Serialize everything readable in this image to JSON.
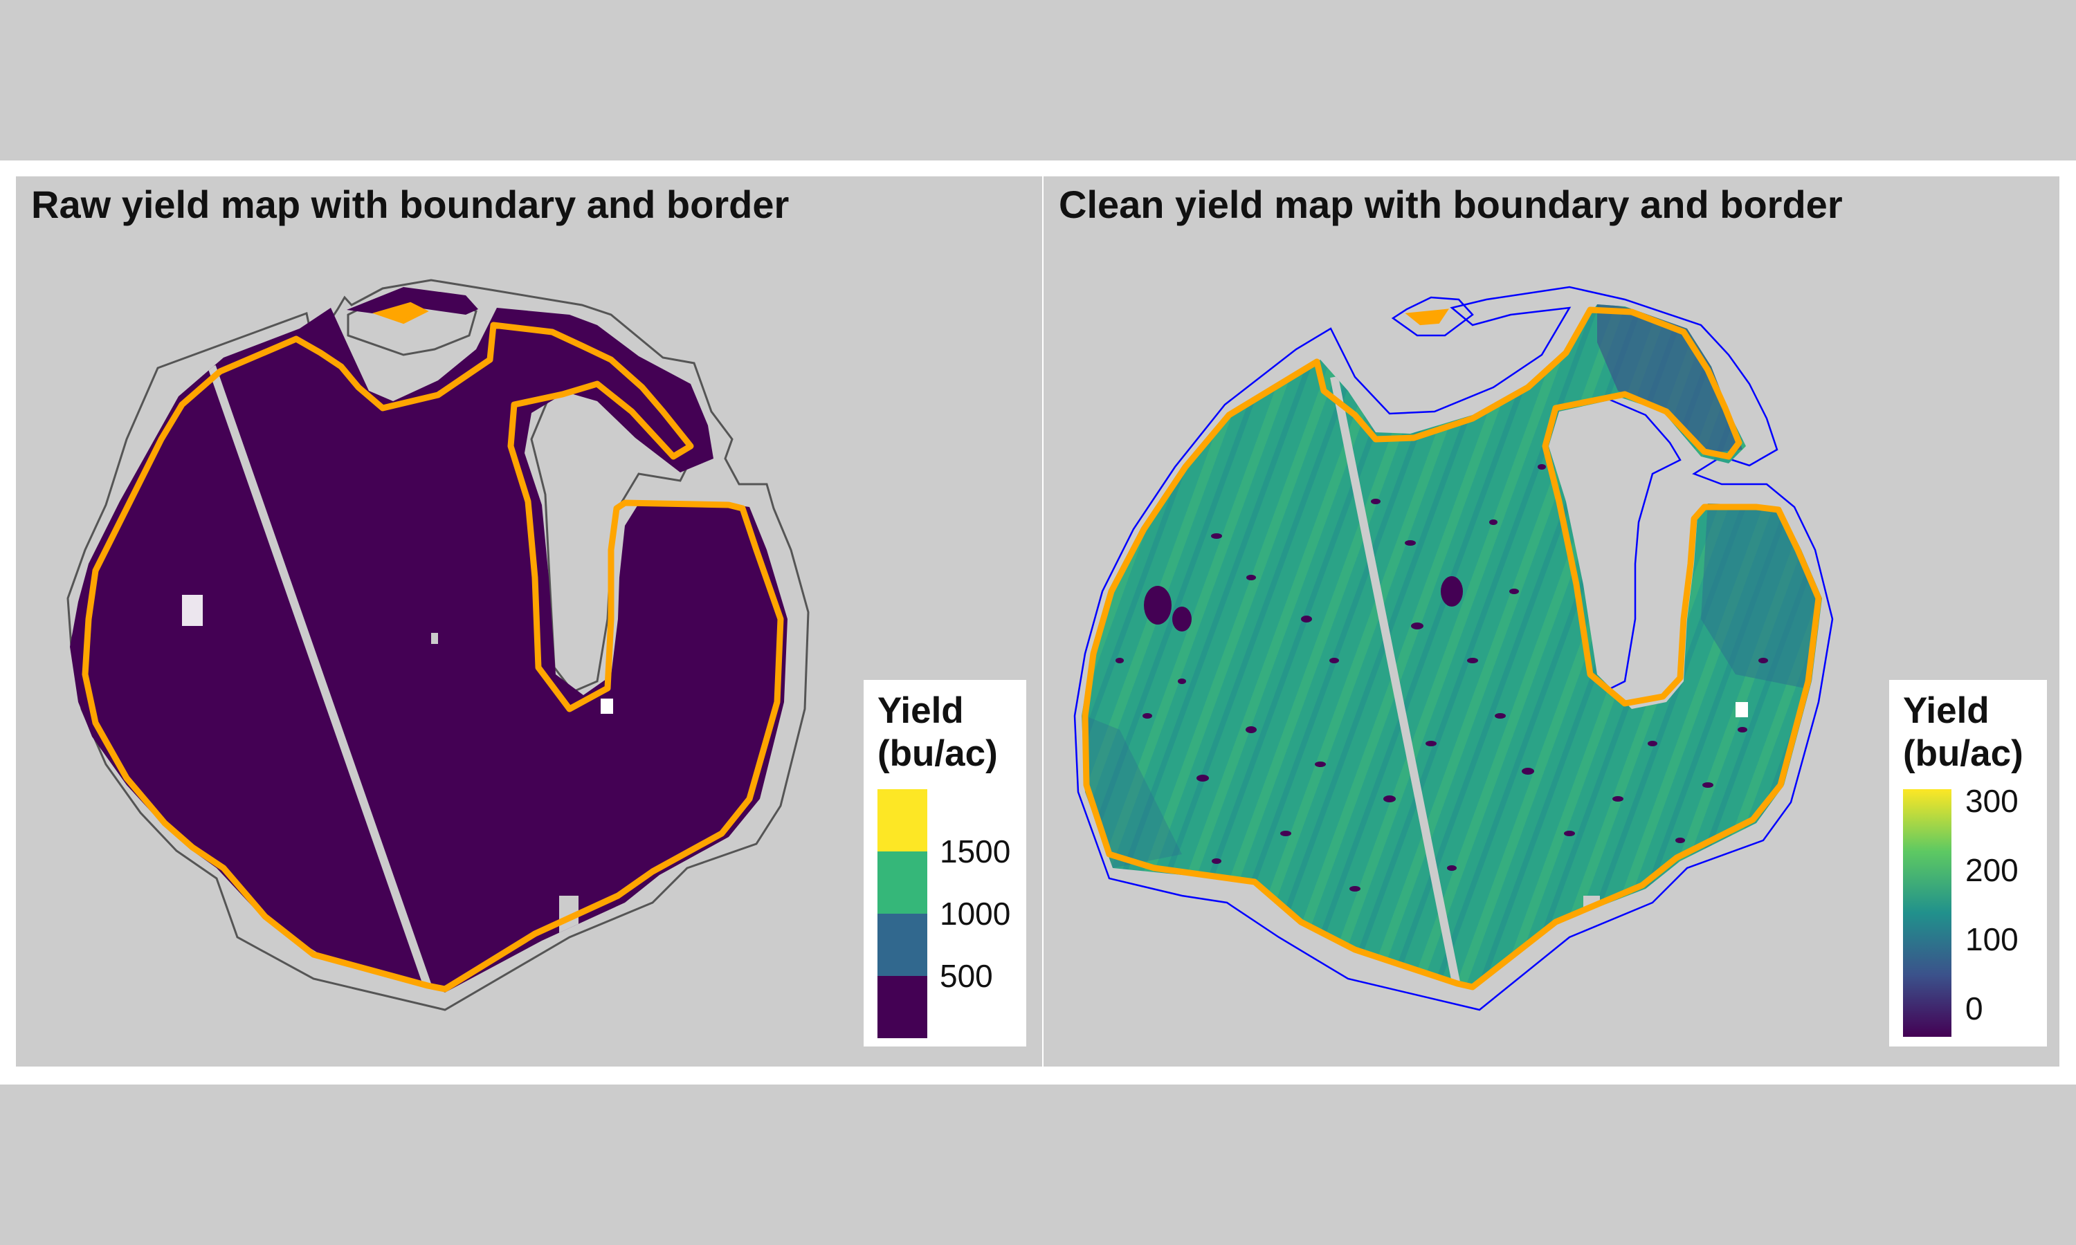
{
  "left_panel": {
    "title": "Raw yield map with boundary and border",
    "legend": {
      "title_line1": "Yield",
      "title_line2": "(bu/ac)",
      "type": "binned",
      "bins": [
        {
          "color": "#440154",
          "range": "0-500"
        },
        {
          "color": "#31688e",
          "range": "500-1000"
        },
        {
          "color": "#35b779",
          "range": "1000-1500"
        },
        {
          "color": "#fde725",
          "range": ">1500"
        }
      ],
      "labels": [
        "500",
        "1000",
        "1500"
      ]
    }
  },
  "right_panel": {
    "title": "Clean yield map with boundary and border",
    "legend": {
      "title_line1": "Yield",
      "title_line2": "(bu/ac)",
      "type": "continuous",
      "labels": [
        "0",
        "100",
        "200",
        "300"
      ],
      "gradient_colors": [
        "#440154",
        "#3b528b",
        "#21918c",
        "#5ec962",
        "#fde725"
      ]
    }
  },
  "colors": {
    "background": "#cccccc",
    "frame": "#ffffff",
    "boundary_raw": "#555555",
    "boundary_clean": "#0000ff",
    "border": "#ffa500",
    "raw_fill": "#440154",
    "clean_fill": "#2ca785"
  }
}
